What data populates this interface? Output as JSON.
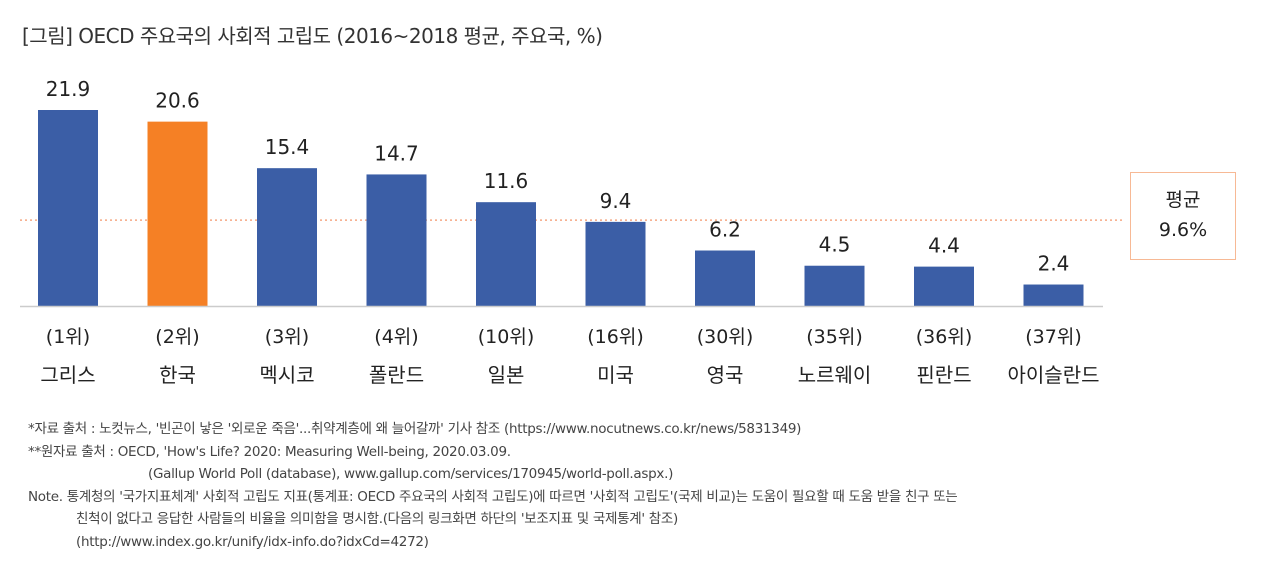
{
  "chart_data": {
    "type": "bar",
    "title": "[그림] OECD 주요국의 사회적 고립도 (2016~2018 평균, 주요국, %)",
    "categories": [
      "그리스",
      "한국",
      "멕시코",
      "폴란드",
      "일본",
      "미국",
      "영국",
      "노르웨이",
      "핀란드",
      "아이슬란드"
    ],
    "ranks": [
      "(1위)",
      "(2위)",
      "(3위)",
      "(4위)",
      "(10위)",
      "(16위)",
      "(30위)",
      "(35위)",
      "(36위)",
      "(37위)"
    ],
    "values": [
      21.9,
      20.6,
      15.4,
      14.7,
      11.6,
      9.4,
      6.2,
      4.5,
      4.4,
      2.4
    ],
    "highlight_index": 1,
    "average": {
      "label": "평균",
      "value_label": "9.6%",
      "value": 9.6
    },
    "ylim": [
      0,
      23
    ],
    "grid": false,
    "colors": {
      "bar": "#3b5ea6",
      "highlight": "#f58025",
      "average_line": "#f5a882"
    }
  },
  "notes": [
    "*자료 출처 : 노컷뉴스, '빈곤이 낳은 '외로운 죽음'...취약계층에 왜 늘어갈까' 기사 참조  (https://www.nocutnews.co.kr/news/5831349)",
    "**원자료 출처 : OECD, 'How's Life? 2020: Measuring Well-being, 2020.03.09.",
    "(Gallup World Poll (database), www.gallup.com/services/170945/world-poll.aspx.)",
    "Note. 통계청의 '국가지표체계' 사회적 고립도 지표(통계표: OECD 주요국의 사회적 고립도)에 따르면 '사회적 고립도'(국제 비교)는 도움이 필요할 때 도움 받을 친구 또는",
    "친척이 없다고 응답한 사람들의 비율을 의미함을 명시함.(다음의 링크화면 하단의 '보조지표 및 국제통계' 참조)",
    "(http://www.index.go.kr/unify/idx-info.do?idxCd=4272)"
  ]
}
